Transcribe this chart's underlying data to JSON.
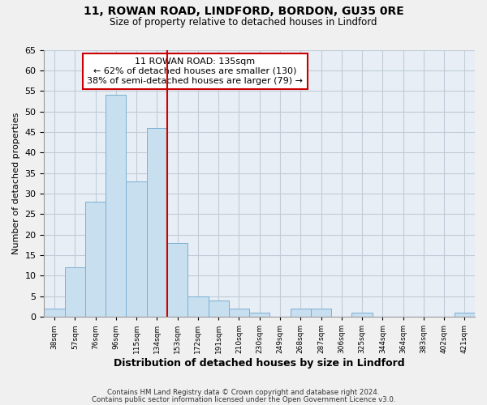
{
  "title": "11, ROWAN ROAD, LINDFORD, BORDON, GU35 0RE",
  "subtitle": "Size of property relative to detached houses in Lindford",
  "xlabel": "Distribution of detached houses by size in Lindford",
  "ylabel": "Number of detached properties",
  "bar_labels": [
    "38sqm",
    "57sqm",
    "76sqm",
    "96sqm",
    "115sqm",
    "134sqm",
    "153sqm",
    "172sqm",
    "191sqm",
    "210sqm",
    "230sqm",
    "249sqm",
    "268sqm",
    "287sqm",
    "306sqm",
    "325sqm",
    "344sqm",
    "364sqm",
    "383sqm",
    "402sqm",
    "421sqm"
  ],
  "bar_values": [
    2,
    12,
    28,
    54,
    33,
    46,
    18,
    5,
    4,
    2,
    1,
    0,
    2,
    2,
    0,
    1,
    0,
    0,
    0,
    0,
    1
  ],
  "highlight_index": 5,
  "bar_color": "#c8dff0",
  "bar_edge_color": "#7aafd4",
  "highlight_line_color": "#cc0000",
  "annotation_box_edge_color": "#cc0000",
  "annotation_line1": "11 ROWAN ROAD: 135sqm",
  "annotation_line2": "← 62% of detached houses are smaller (130)",
  "annotation_line3": "38% of semi-detached houses are larger (79) →",
  "ylim": [
    0,
    65
  ],
  "yticks": [
    0,
    5,
    10,
    15,
    20,
    25,
    30,
    35,
    40,
    45,
    50,
    55,
    60,
    65
  ],
  "footer1": "Contains HM Land Registry data © Crown copyright and database right 2024.",
  "footer2": "Contains public sector information licensed under the Open Government Licence v3.0.",
  "background_color": "#f0f0f0",
  "plot_background_color": "#e8eef5",
  "grid_color": "#c0ccd8"
}
